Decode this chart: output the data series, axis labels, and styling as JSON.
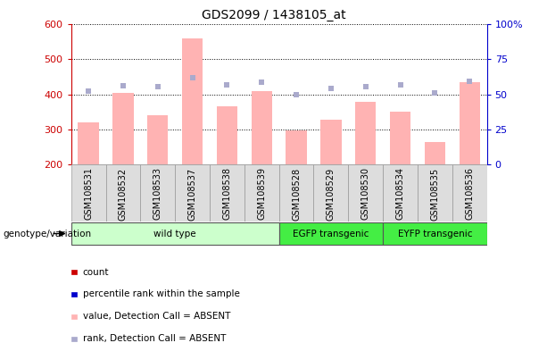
{
  "title": "GDS2099 / 1438105_at",
  "samples": [
    "GSM108531",
    "GSM108532",
    "GSM108533",
    "GSM108537",
    "GSM108538",
    "GSM108539",
    "GSM108528",
    "GSM108529",
    "GSM108530",
    "GSM108534",
    "GSM108535",
    "GSM108536"
  ],
  "bar_values": [
    320,
    405,
    340,
    560,
    365,
    408,
    297,
    328,
    378,
    350,
    265,
    435
  ],
  "rank_values": [
    410,
    425,
    423,
    447,
    427,
    435,
    400,
    417,
    422,
    427,
    405,
    437
  ],
  "ylim_left": [
    200,
    600
  ],
  "ylim_right": [
    0,
    100
  ],
  "yticks_left": [
    200,
    300,
    400,
    500,
    600
  ],
  "yticks_right": [
    0,
    25,
    50,
    75,
    100
  ],
  "ytick_labels_right": [
    "0",
    "25",
    "50",
    "75",
    "100%"
  ],
  "bar_color": "#FFB3B3",
  "rank_color": "#AAAACC",
  "left_axis_color": "#CC0000",
  "right_axis_color": "#0000CC",
  "group_configs": [
    {
      "label": "wild type",
      "start": 0,
      "end": 6,
      "color": "#CCFFCC"
    },
    {
      "label": "EGFP transgenic",
      "start": 6,
      "end": 9,
      "color": "#44EE44"
    },
    {
      "label": "EYFP transgenic",
      "start": 9,
      "end": 12,
      "color": "#44EE44"
    }
  ],
  "genotype_label": "genotype/variation",
  "legend_items": [
    {
      "color": "#CC0000",
      "label": "count"
    },
    {
      "color": "#0000CC",
      "label": "percentile rank within the sample"
    },
    {
      "color": "#FFB3B3",
      "label": "value, Detection Call = ABSENT"
    },
    {
      "color": "#AAAACC",
      "label": "rank, Detection Call = ABSENT"
    }
  ]
}
